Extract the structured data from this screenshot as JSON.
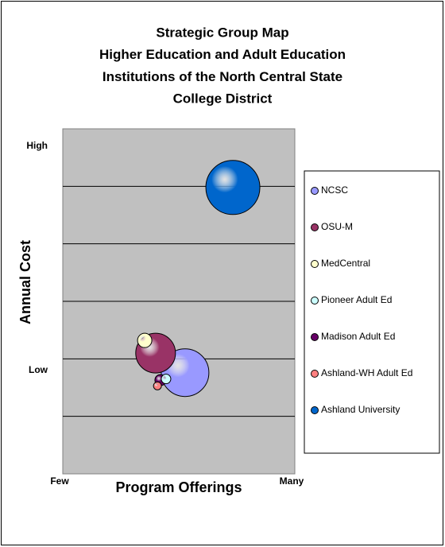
{
  "chart_data": {
    "type": "bubble",
    "title": [
      "Strategic Group Map",
      "Higher Education and Adult Education",
      "Institutions of the North Central State",
      "College District"
    ],
    "xlabel": "Program Offerings",
    "ylabel": "Annual Cost",
    "xlim": [
      0,
      10
    ],
    "ylim": [
      0,
      6
    ],
    "xticks": [
      {
        "value": 0,
        "label": "Few"
      },
      {
        "value": 10,
        "label": "Many"
      }
    ],
    "yticks": [
      {
        "value": 5.7,
        "label": "High"
      },
      {
        "value": 1.8,
        "label": "Low"
      }
    ],
    "ygrid": [
      1,
      2,
      3,
      4,
      5
    ],
    "grid": true,
    "legend": "right",
    "series": [
      {
        "name": "NCSC",
        "color": "#9999ff",
        "x": [
          5.27
        ],
        "values": [
          1.76
        ],
        "sizes": [
          900
        ]
      },
      {
        "name": "OSU-M",
        "color": "#993366",
        "x": [
          4.0
        ],
        "values": [
          2.1
        ],
        "sizes": [
          625
        ]
      },
      {
        "name": "MedCentral",
        "color": "#ffffcc",
        "x": [
          3.53
        ],
        "values": [
          2.32
        ],
        "sizes": [
          81
        ]
      },
      {
        "name": "Pioneer Adult Ed",
        "color": "#ccffff",
        "x": [
          4.45
        ],
        "values": [
          1.65
        ],
        "sizes": [
          36
        ]
      },
      {
        "name": "Madison Adult Ed",
        "color": "#660066",
        "x": [
          4.21
        ],
        "values": [
          1.63
        ],
        "sizes": [
          49
        ]
      },
      {
        "name": "Ashland-WH Adult Ed",
        "color": "#ff8080",
        "x": [
          4.08
        ],
        "values": [
          1.53
        ],
        "sizes": [
          25
        ]
      },
      {
        "name": "Ashland University",
        "color": "#0066cc",
        "x": [
          7.33
        ],
        "values": [
          4.98
        ],
        "sizes": [
          1156
        ]
      }
    ]
  }
}
